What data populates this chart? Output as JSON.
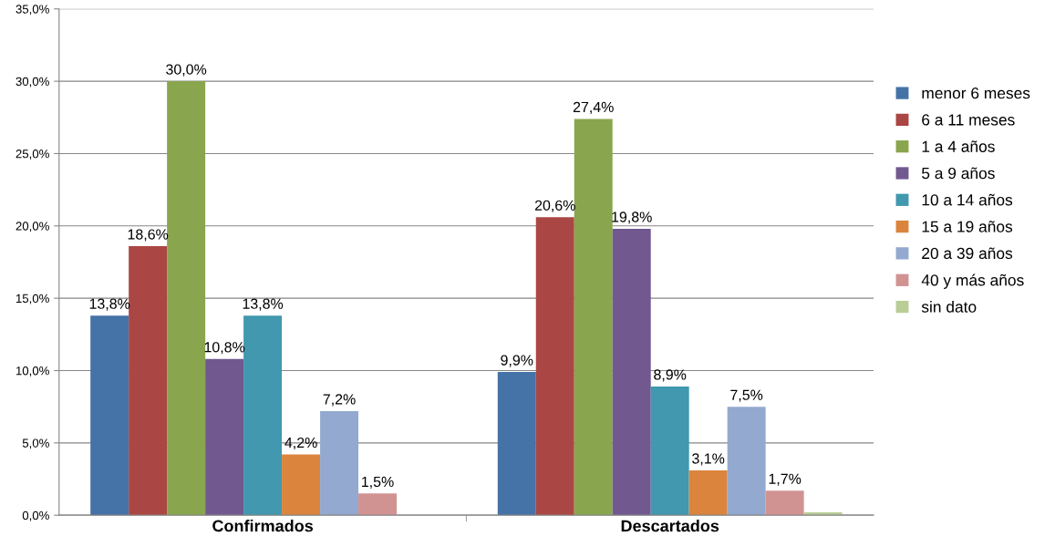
{
  "chart_data": {
    "type": "bar",
    "categories": [
      "Confirmados",
      "Descartados"
    ],
    "series": [
      {
        "name": "menor 6 meses",
        "color": "#4572a7",
        "values": [
          13.8,
          9.9
        ],
        "value_labels": [
          "13,8%",
          "9,9%"
        ]
      },
      {
        "name": "6 a 11 meses",
        "color": "#aa4643",
        "values": [
          18.6,
          20.6
        ],
        "value_labels": [
          "18,6%",
          "20,6%"
        ]
      },
      {
        "name": "1 a 4 años",
        "color": "#89a54e",
        "values": [
          30.0,
          27.4
        ],
        "value_labels": [
          "30,0%",
          "27,4%"
        ]
      },
      {
        "name": "5 a 9 años",
        "color": "#71588f",
        "values": [
          10.8,
          19.8
        ],
        "value_labels": [
          "10,8%",
          "19,8%"
        ]
      },
      {
        "name": "10 a 14 años",
        "color": "#4198af",
        "values": [
          13.8,
          8.9
        ],
        "value_labels": [
          "13,8%",
          "8,9%"
        ]
      },
      {
        "name": "15 a 19 años",
        "color": "#db843d",
        "values": [
          4.2,
          3.1
        ],
        "value_labels": [
          "4,2%",
          "3,1%"
        ]
      },
      {
        "name": "20 a 39 años",
        "color": "#93a9cf",
        "values": [
          7.2,
          7.5
        ],
        "value_labels": [
          "7,2%",
          "7,5%"
        ]
      },
      {
        "name": "40 y más años",
        "color": "#d19392",
        "values": [
          1.5,
          1.7
        ],
        "value_labels": [
          "1,5%",
          "1,7%"
        ]
      },
      {
        "name": "sin dato",
        "color": "#b9cd96",
        "values": [
          null,
          0.2
        ],
        "value_labels": [
          null,
          null
        ]
      }
    ],
    "ylim": [
      0,
      35
    ],
    "yticks": [
      {
        "value": 0,
        "label": "0,0%"
      },
      {
        "value": 5,
        "label": "5,0%"
      },
      {
        "value": 10,
        "label": "10,0%"
      },
      {
        "value": 15,
        "label": "15,0%"
      },
      {
        "value": 20,
        "label": "20,0%"
      },
      {
        "value": 25,
        "label": "25,0%"
      },
      {
        "value": 30,
        "label": "30,0%"
      },
      {
        "value": 35,
        "label": "35,0%"
      }
    ],
    "grid": "y",
    "legend": "right"
  }
}
